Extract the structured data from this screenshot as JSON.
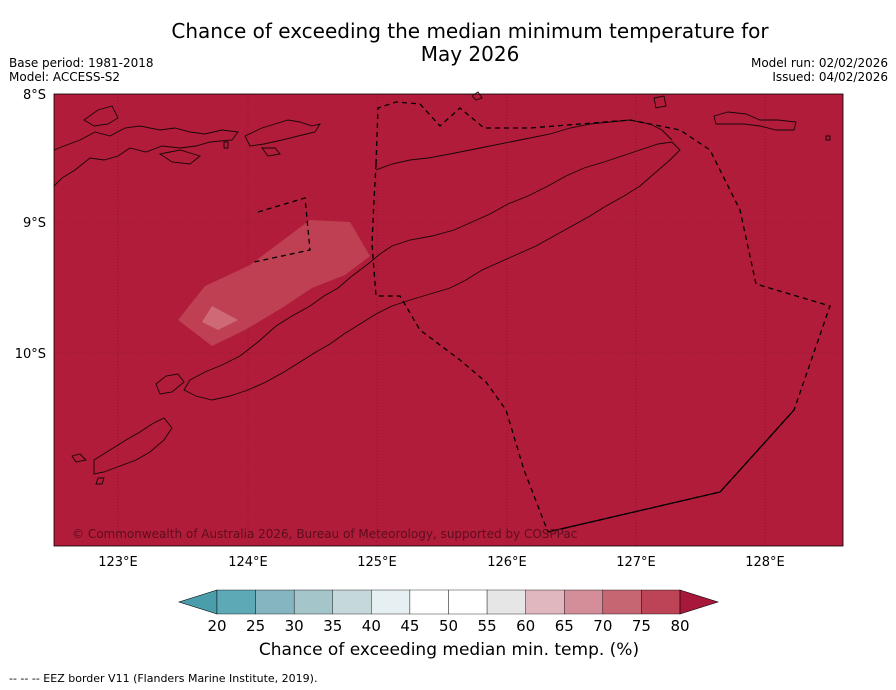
{
  "header": {
    "title_line1": "Chance of exceeding the median minimum temperature for",
    "title_line2": "May 2026",
    "base_period": "Base period: 1981-2018",
    "model": "Model: ACCESS-S2",
    "model_run": "Model run: 02/02/2026",
    "issued": "Issued: 04/02/2026"
  },
  "map": {
    "background_color": "#b01c39",
    "lat_labels": [
      "8°S",
      "9°S",
      "10°S"
    ],
    "lon_labels": [
      "123°E",
      "124°E",
      "125°E",
      "126°E",
      "127°E",
      "128°E"
    ],
    "copyright": "© Commonwealth of Australia 2026, Bureau of Meteorology, supported by COSPPac"
  },
  "colorbar": {
    "ticks": [
      "20",
      "25",
      "30",
      "35",
      "40",
      "45",
      "50",
      "55",
      "60",
      "65",
      "70",
      "75",
      "80"
    ],
    "colors": [
      "#5ea9b6",
      "#85b5c0",
      "#a4c6cb",
      "#c5d8da",
      "#e6eff1",
      "#ffffff",
      "#ffffff",
      "#e6e6e6",
      "#e1b7bf",
      "#d48e99",
      "#c76673",
      "#bd4456"
    ],
    "under_color": "#4a9eab",
    "over_color": "#a8183a",
    "label": "Chance of exceeding median min. temp. (%)"
  },
  "footer": {
    "legend_text": "--  --  -- EEZ border V11 (Flanders Marine Institute, 2019)."
  }
}
